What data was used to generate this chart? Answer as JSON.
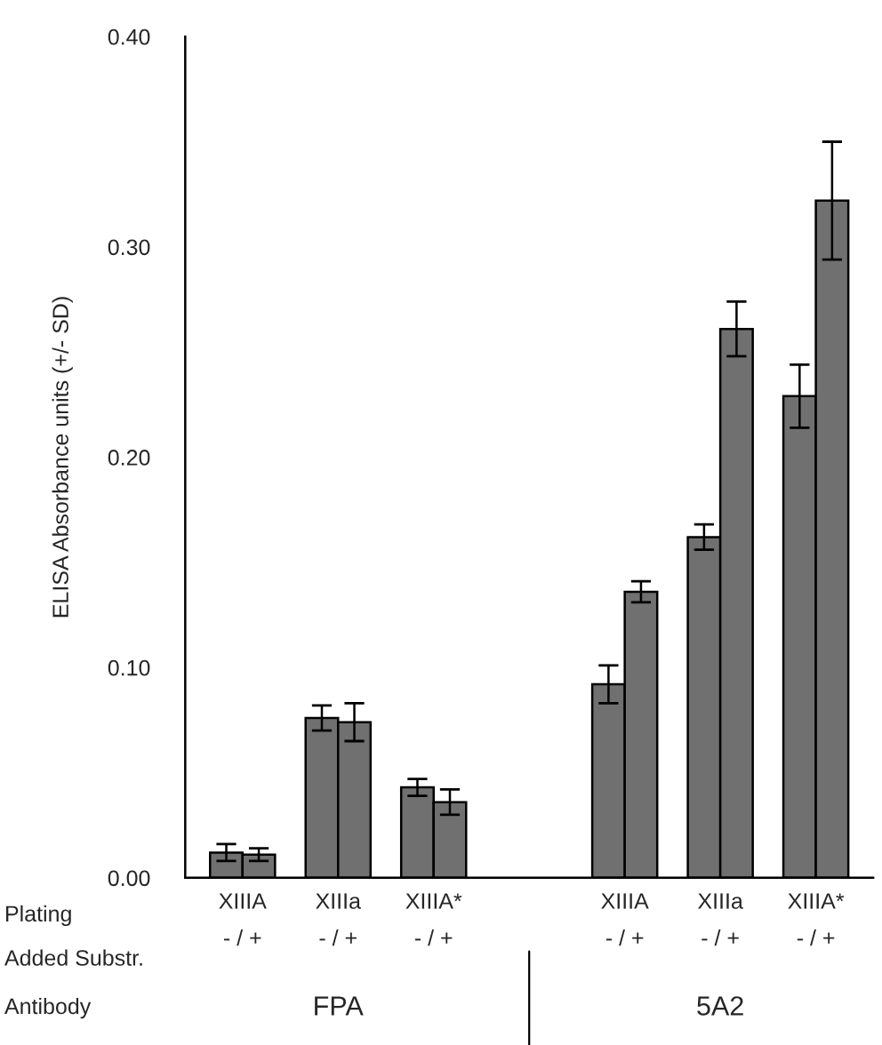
{
  "chart_data": {
    "type": "bar",
    "ylabel": "ELISA Absorbance units (+/- SD)",
    "categories": [
      "XIIIA\n- / +",
      "XIIIa\n- / +",
      "XIIIA*\n- / +",
      null,
      "XIIIA\n- / +",
      "XIIIa\n- / +",
      "XIIIA*\n- / +"
    ],
    "series": [
      {
        "color": "#707070",
        "values": [
          0.012,
          0.076,
          0.043,
          null,
          0.092,
          0.162,
          0.229
        ],
        "errors": [
          0.004,
          0.006,
          0.004,
          null,
          0.009,
          0.006,
          0.015
        ]
      },
      {
        "color": "#707070",
        "values": [
          0.011,
          0.074,
          0.036,
          null,
          0.136,
          0.261,
          0.322
        ],
        "errors": [
          0.003,
          0.009,
          0.006,
          null,
          0.005,
          0.013,
          0.028
        ]
      }
    ],
    "ylim": [
      0,
      0.4
    ],
    "yticks": [
      {
        "value": 0,
        "label": "0.00"
      },
      {
        "value": 0.1,
        "label": "0.10"
      },
      {
        "value": 0.2,
        "label": "0.20"
      },
      {
        "value": 0.3,
        "label": "0.30"
      },
      {
        "value": 0.4,
        "label": "0.40"
      }
    ],
    "grid": false,
    "legend": false,
    "annotations": [
      "Plating",
      "Added Substr.",
      "Antibody",
      "FPA",
      "5A2"
    ]
  }
}
